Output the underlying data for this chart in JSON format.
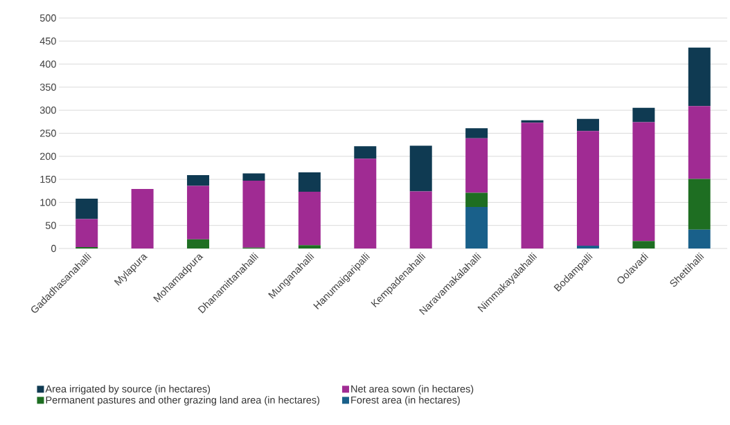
{
  "chart_data": {
    "type": "bar",
    "stacked": true,
    "categories": [
      "Gadadhasanahalli",
      "Mylapura",
      "Mohamadpura",
      "Dhanamittanahalli",
      "Munganahalli",
      "Hanumaigaripalli",
      "Kempadenahalli",
      "Naravamakalahalli",
      "Nimmakayalahalli",
      "Bodampalli",
      "Oolavadi",
      "Shettihalli"
    ],
    "series": [
      {
        "name": "Forest area (in hectares)",
        "color": "#19608a",
        "values": [
          0,
          0,
          0,
          0,
          0,
          0,
          0,
          90,
          0,
          6,
          0,
          41
        ]
      },
      {
        "name": "Permanent pastures and other grazing land area (in hectares)",
        "color": "#1e6e22",
        "values": [
          3,
          0,
          20,
          2,
          7,
          0,
          0,
          31,
          0,
          0,
          16,
          110
        ]
      },
      {
        "name": "Net area sown (in hectares)",
        "color": "#a02b93",
        "values": [
          61,
          129,
          116,
          145,
          116,
          195,
          124,
          118,
          273,
          249,
          258,
          158
        ]
      },
      {
        "name": "Area irrigated by source (in hectares)",
        "color": "#0f3a52",
        "values": [
          44,
          0,
          23,
          16,
          42,
          27,
          99,
          22,
          5,
          26,
          31,
          127
        ]
      }
    ],
    "ylim": [
      0,
      500
    ],
    "yticks": [
      0,
      50,
      100,
      150,
      200,
      250,
      300,
      350,
      400,
      450,
      500
    ],
    "grid": "y",
    "legend": "bottom"
  }
}
